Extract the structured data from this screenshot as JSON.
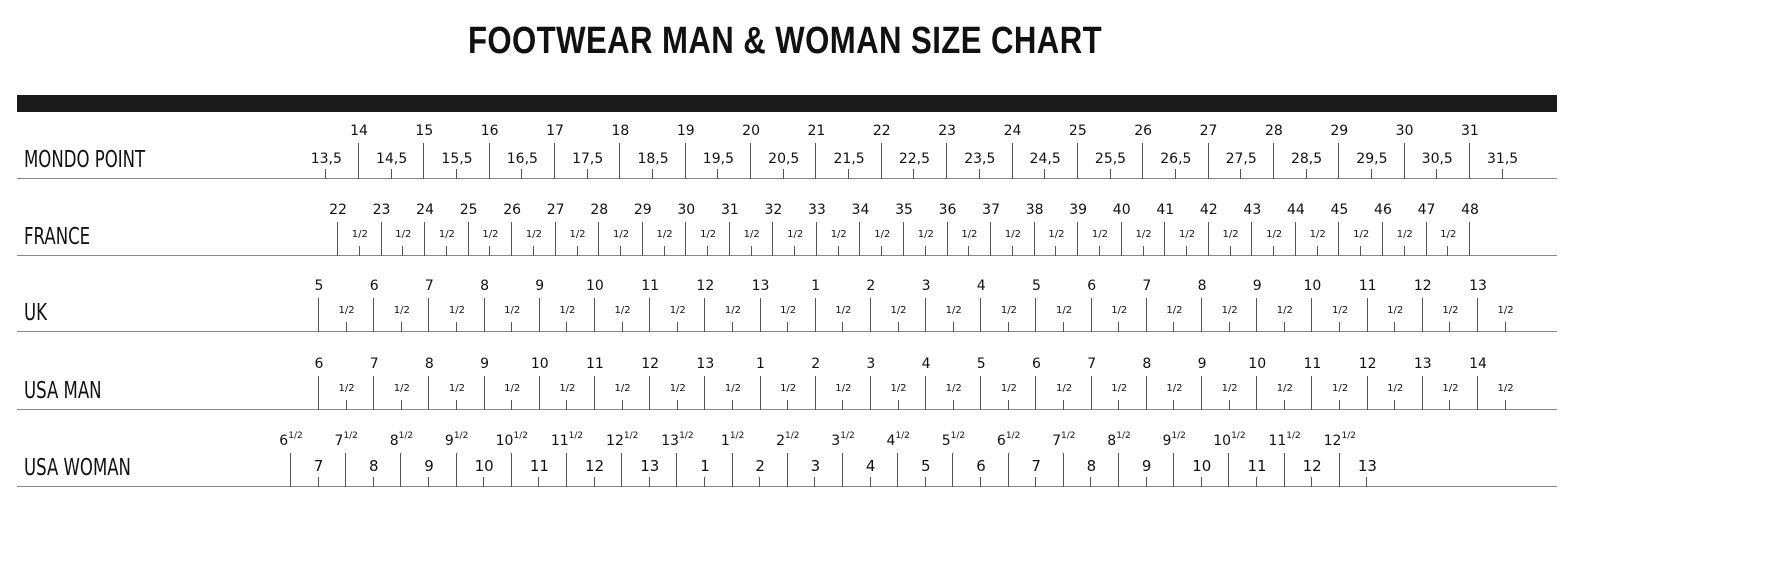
{
  "title": "FOOTWEAR MAN & WOMAN SIZE CHART",
  "rows": [
    {
      "label": "MONDO POINT",
      "style": "mondo",
      "major": [
        "14",
        "15",
        "16",
        "17",
        "18",
        "19",
        "20",
        "21",
        "22",
        "23",
        "24",
        "25",
        "26",
        "27",
        "28",
        "29",
        "30",
        "31"
      ],
      "minor": [
        "13,5",
        "14,5",
        "15,5",
        "16,5",
        "17,5",
        "18,5",
        "19,5",
        "20,5",
        "21,5",
        "22,5",
        "23,5",
        "24,5",
        "25,5",
        "26,5",
        "27,5",
        "28,5",
        "29,5",
        "30,5",
        "31,5"
      ]
    },
    {
      "label": "FRANCE",
      "style": "france",
      "major": [
        "22",
        "23",
        "24",
        "25",
        "26",
        "27",
        "28",
        "29",
        "30",
        "31",
        "32",
        "33",
        "34",
        "35",
        "36",
        "37",
        "38",
        "39",
        "40",
        "41",
        "42",
        "43",
        "44",
        "45",
        "46",
        "47",
        "48"
      ],
      "minor": [
        "1/2",
        "1/2",
        "1/2",
        "1/2",
        "1/2",
        "1/2",
        "1/2",
        "1/2",
        "1/2",
        "1/2",
        "1/2",
        "1/2",
        "1/2",
        "1/2",
        "1/2",
        "1/2",
        "1/2",
        "1/2",
        "1/2",
        "1/2",
        "1/2",
        "1/2",
        "1/2",
        "1/2",
        "1/2",
        "1/2"
      ]
    },
    {
      "label": "UK",
      "style": "uk",
      "major": [
        "5",
        "6",
        "7",
        "8",
        "9",
        "10",
        "11",
        "12",
        "13",
        "1",
        "2",
        "3",
        "4",
        "5",
        "6",
        "7",
        "8",
        "9",
        "10",
        "11",
        "12",
        "13"
      ],
      "minor": [
        "1/2",
        "1/2",
        "1/2",
        "1/2",
        "1/2",
        "1/2",
        "1/2",
        "1/2",
        "1/2",
        "1/2",
        "1/2",
        "1/2",
        "1/2",
        "1/2",
        "1/2",
        "1/2",
        "1/2",
        "1/2",
        "1/2",
        "1/2",
        "1/2",
        "1/2"
      ]
    },
    {
      "label": "USA MAN",
      "style": "uk",
      "major": [
        "6",
        "7",
        "8",
        "9",
        "10",
        "11",
        "12",
        "13",
        "1",
        "2",
        "3",
        "4",
        "5",
        "6",
        "7",
        "8",
        "9",
        "10",
        "11",
        "12",
        "13",
        "14"
      ],
      "minor": [
        "1/2",
        "1/2",
        "1/2",
        "1/2",
        "1/2",
        "1/2",
        "1/2",
        "1/2",
        "1/2",
        "1/2",
        "1/2",
        "1/2",
        "1/2",
        "1/2",
        "1/2",
        "1/2",
        "1/2",
        "1/2",
        "1/2",
        "1/2",
        "1/2",
        "1/2"
      ]
    },
    {
      "label": "USA WOMAN",
      "style": "woman",
      "major": [
        "6 1/2",
        "7 1/2",
        "8 1/2",
        "9 1/2",
        "10 1/2",
        "11 1/2",
        "12 1/2",
        "13 1/2",
        "1 1/2",
        "2 1/2",
        "3 1/2",
        "4 1/2",
        "5 1/2",
        "6 1/2",
        "7 1/2",
        "8 1/2",
        "9 1/2",
        "10 1/2",
        "11 1/2",
        "12 1/2"
      ],
      "minor": [
        "7",
        "8",
        "9",
        "10",
        "11",
        "12",
        "13",
        "1",
        "2",
        "3",
        "4",
        "5",
        "6",
        "7",
        "8",
        "9",
        "10",
        "11",
        "12",
        "13"
      ]
    }
  ]
}
